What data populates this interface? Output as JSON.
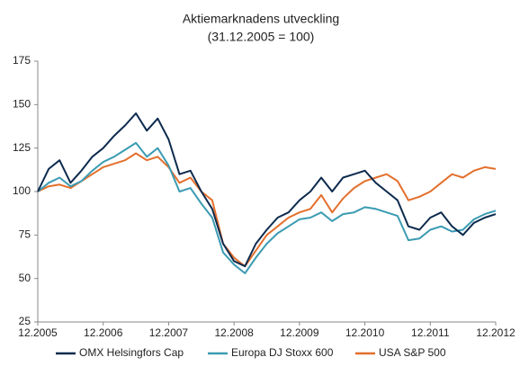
{
  "chart_data": {
    "type": "line",
    "title": "Aktiemarknadens utveckling",
    "subtitle": "(31.12.2005 = 100)",
    "categories": [
      "12.2005",
      "02.2006",
      "04.2006",
      "06.2006",
      "08.2006",
      "10.2006",
      "12.2006",
      "02.2007",
      "04.2007",
      "06.2007",
      "08.2007",
      "10.2007",
      "12.2007",
      "02.2008",
      "04.2008",
      "06.2008",
      "08.2008",
      "10.2008",
      "12.2008",
      "02.2009",
      "04.2009",
      "06.2009",
      "08.2009",
      "10.2009",
      "12.2009",
      "02.2010",
      "04.2010",
      "06.2010",
      "08.2010",
      "10.2010",
      "12.2010",
      "02.2011",
      "04.2011",
      "06.2011",
      "08.2011",
      "10.2011",
      "12.2011",
      "02.2012",
      "04.2012",
      "06.2012",
      "08.2012",
      "10.2012",
      "12.2012"
    ],
    "xticks": [
      "12.2005",
      "12.2006",
      "12.2007",
      "12.2008",
      "12.2009",
      "12.2010",
      "12.2011",
      "12.2012"
    ],
    "series": [
      {
        "name": "OMX Helsingfors Cap",
        "color": "#0d2b4e",
        "values": [
          100,
          113,
          118,
          105,
          112,
          120,
          125,
          132,
          138,
          145,
          135,
          142,
          130,
          110,
          112,
          100,
          90,
          70,
          60,
          57,
          70,
          78,
          85,
          88,
          95,
          100,
          108,
          100,
          108,
          110,
          112,
          105,
          100,
          95,
          80,
          78,
          85,
          88,
          80,
          75,
          82,
          85,
          87
        ]
      },
      {
        "name": "Europa DJ Stoxx 600",
        "color": "#3b9bb2",
        "values": [
          100,
          105,
          108,
          103,
          106,
          112,
          117,
          120,
          124,
          128,
          120,
          125,
          115,
          100,
          102,
          93,
          85,
          65,
          58,
          53,
          62,
          70,
          76,
          80,
          84,
          85,
          88,
          83,
          87,
          88,
          91,
          90,
          88,
          86,
          72,
          73,
          78,
          80,
          77,
          78,
          84,
          87,
          89
        ]
      },
      {
        "name": "USA S&P 500",
        "color": "#e36f2c",
        "values": [
          100,
          103,
          104,
          102,
          106,
          110,
          114,
          116,
          118,
          122,
          118,
          120,
          114,
          105,
          108,
          100,
          95,
          70,
          62,
          57,
          66,
          75,
          80,
          85,
          88,
          90,
          98,
          88,
          96,
          102,
          106,
          108,
          110,
          106,
          95,
          97,
          100,
          105,
          110,
          108,
          112,
          114,
          113
        ]
      }
    ],
    "ylim": [
      25,
      175
    ],
    "yticks": [
      25,
      50,
      75,
      100,
      125,
      150,
      175
    ],
    "grid": false
  }
}
